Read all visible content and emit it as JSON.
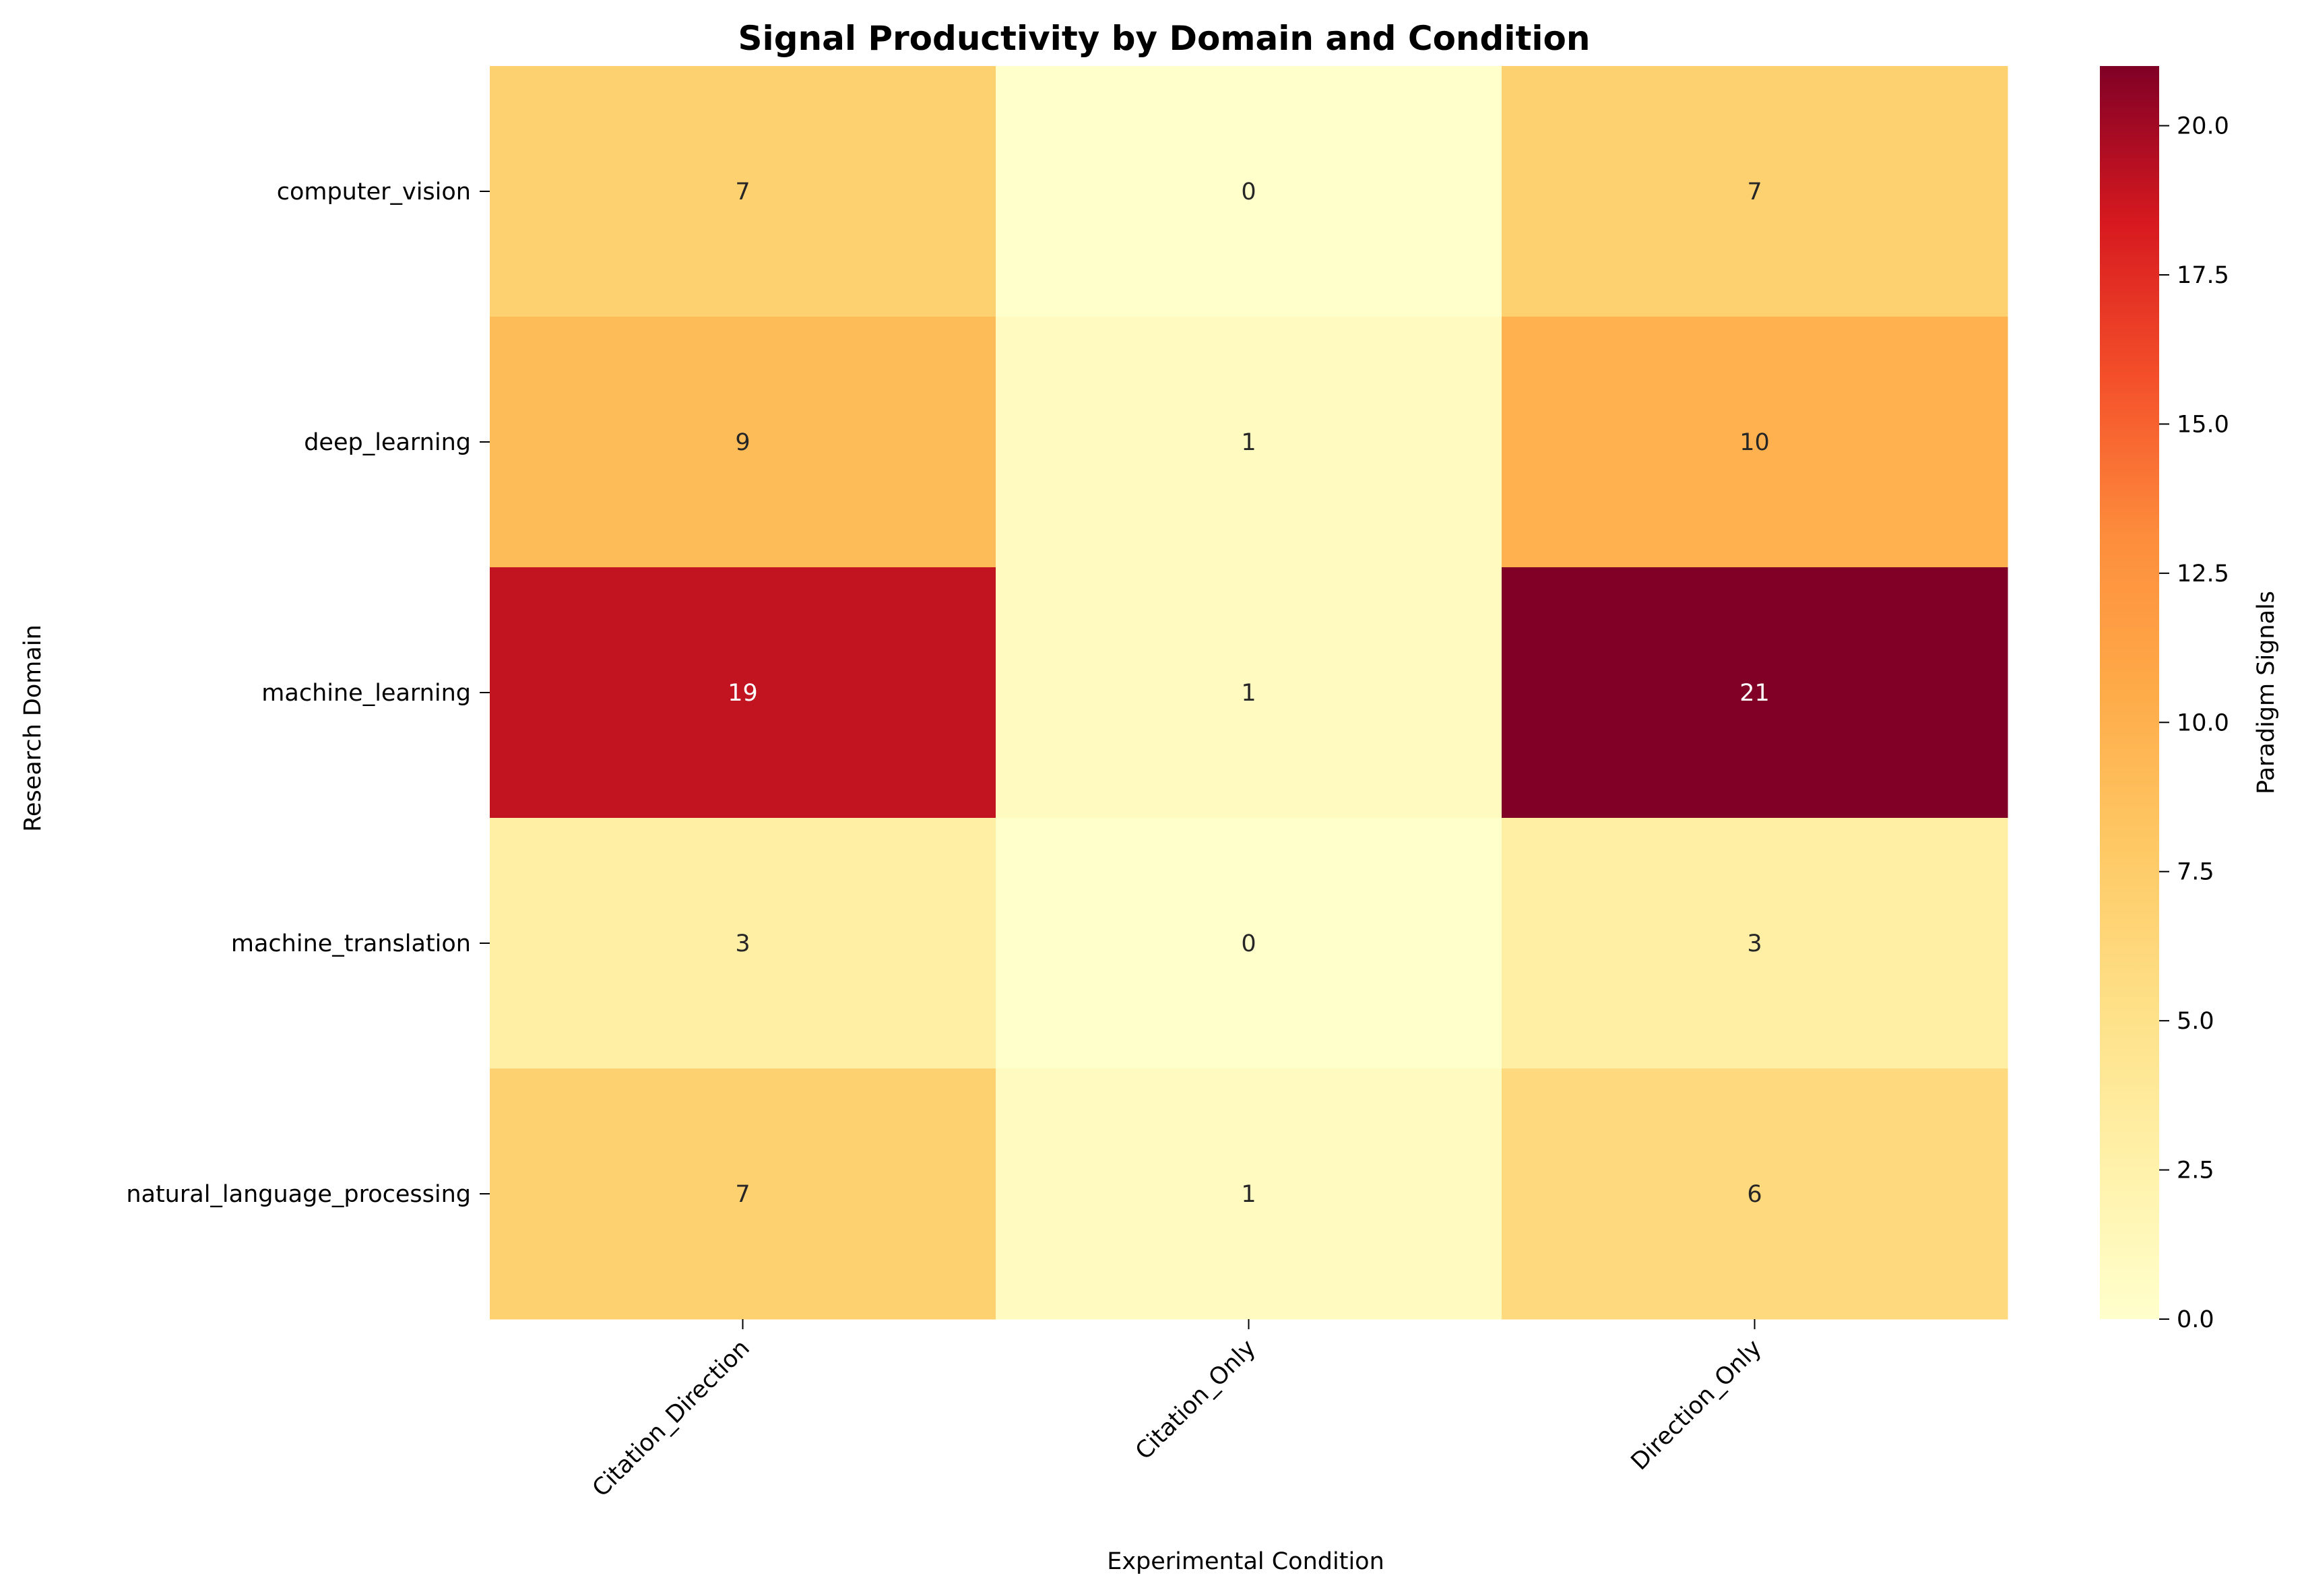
{
  "chart_data": {
    "type": "heatmap",
    "title": "Signal Productivity by Domain and Condition",
    "xlabel": "Experimental Condition",
    "ylabel": "Research Domain",
    "x_categories": [
      "Citation_Direction",
      "Citation_Only",
      "Direction_Only"
    ],
    "y_categories": [
      "computer_vision",
      "deep_learning",
      "machine_learning",
      "machine_translation",
      "natural_language_processing"
    ],
    "values": [
      [
        7,
        0,
        7
      ],
      [
        9,
        1,
        10
      ],
      [
        19,
        1,
        21
      ],
      [
        3,
        0,
        3
      ],
      [
        7,
        1,
        6
      ]
    ],
    "colorbar": {
      "label": "Paradigm Signals",
      "range": [
        0,
        21
      ],
      "ticks": [
        "0.0",
        "2.5",
        "5.0",
        "7.5",
        "10.0",
        "12.5",
        "15.0",
        "17.5",
        "20.0"
      ],
      "colormap": "YlOrRd"
    },
    "grid": false,
    "legend": "none"
  }
}
